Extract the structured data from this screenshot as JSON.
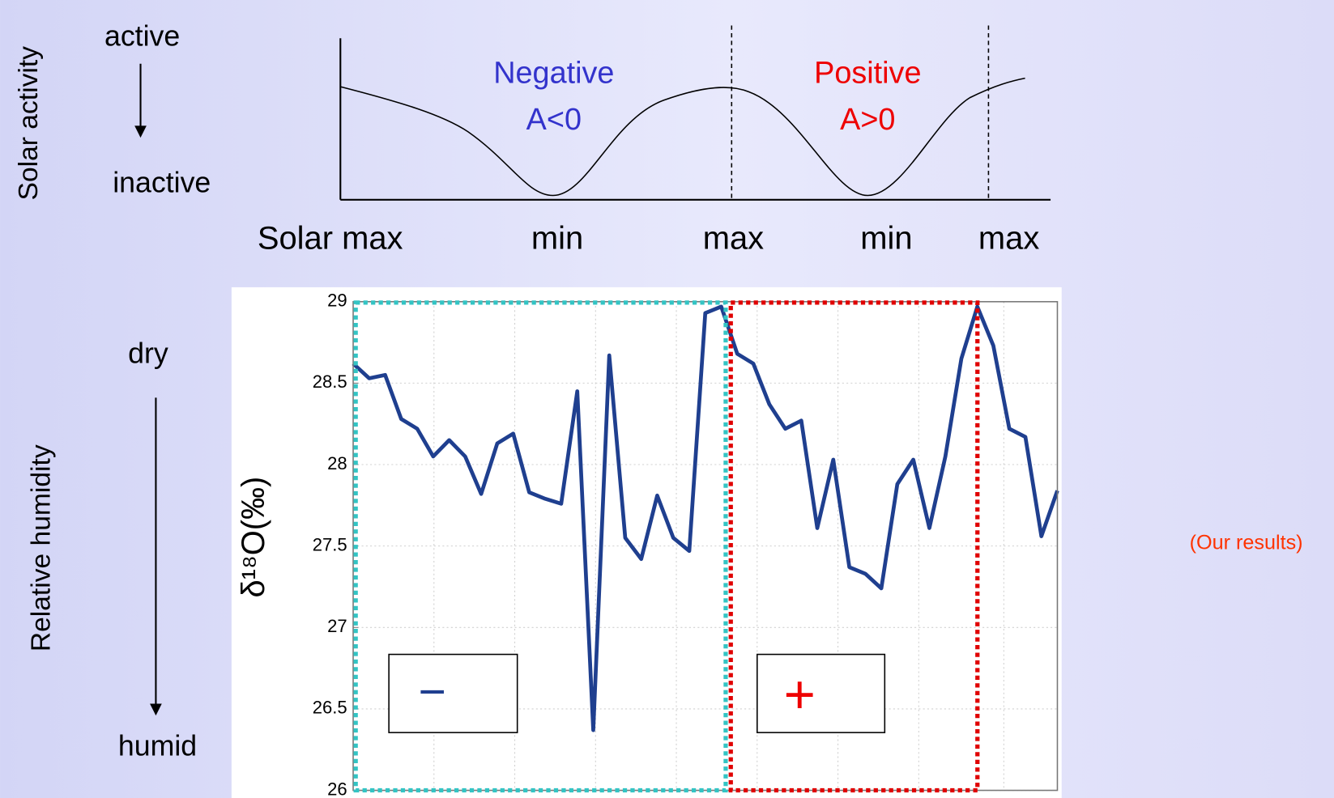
{
  "diagram": {
    "y_label": "Solar activity",
    "top_label": "active",
    "bottom_label": "inactive",
    "phases": [
      {
        "name": "Negative",
        "condition": "A<0"
      },
      {
        "name": "Positive",
        "condition": "A>0"
      }
    ],
    "x_labels": [
      "Solar max",
      "min",
      "max",
      "min",
      "max"
    ]
  },
  "humidity": {
    "y_label": "Relative humidity",
    "top_label": "dry",
    "bottom_label": "humid"
  },
  "chart_data": {
    "type": "line",
    "y_label": "δ¹⁸O(‰)",
    "color": "#1f3f8f",
    "values": [
      28.62,
      28.53,
      28.55,
      28.28,
      28.22,
      28.05,
      28.15,
      28.05,
      27.82,
      28.13,
      28.19,
      27.83,
      27.79,
      27.76,
      28.45,
      26.37,
      28.67,
      27.55,
      27.42,
      27.81,
      27.55,
      27.47,
      28.93,
      28.97,
      28.68,
      28.62,
      28.37,
      28.22,
      28.27,
      27.61,
      28.03,
      27.37,
      27.33,
      27.24,
      27.88,
      28.03,
      27.61,
      28.05,
      28.65,
      28.97,
      28.73,
      28.22,
      28.17,
      27.56,
      27.84
    ],
    "ylim": [
      26,
      29
    ],
    "yticks": [
      26,
      26.5,
      27,
      27.5,
      28,
      28.5,
      29
    ],
    "grid": true,
    "annotations": [
      "−",
      "+"
    ]
  },
  "note": "(Our results)"
}
